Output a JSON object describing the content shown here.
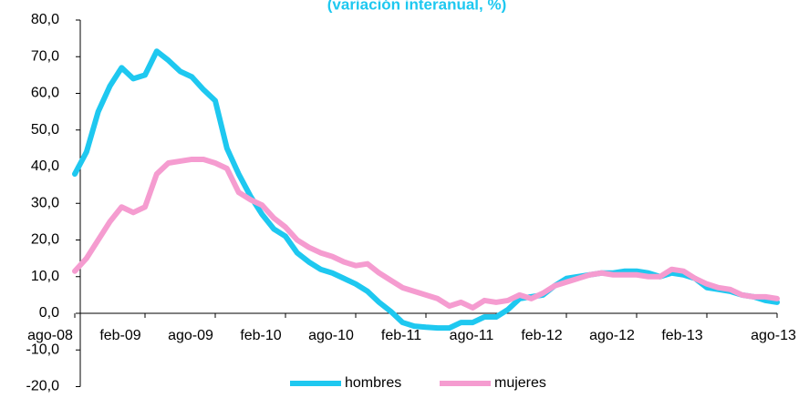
{
  "chart_data": {
    "type": "line",
    "subtitle": "(variación interanual, %)",
    "categories": [
      "ago-08",
      null,
      null,
      null,
      null,
      null,
      "feb-09",
      null,
      null,
      null,
      null,
      null,
      "ago-09",
      null,
      null,
      null,
      null,
      null,
      "feb-10",
      null,
      null,
      null,
      null,
      null,
      "ago-10",
      null,
      null,
      null,
      null,
      null,
      "feb-11",
      null,
      null,
      null,
      null,
      null,
      "ago-11",
      null,
      null,
      null,
      null,
      null,
      "feb-12",
      null,
      null,
      null,
      null,
      null,
      "ago-12",
      null,
      null,
      null,
      null,
      null,
      "feb-13",
      null,
      null,
      null,
      null,
      null,
      "ago-13"
    ],
    "series": [
      {
        "name": "hombres",
        "color": "#1ec8f0",
        "values": [
          38,
          44,
          55,
          62,
          67,
          64,
          65,
          71.5,
          69,
          66,
          64.5,
          61,
          58,
          45,
          38,
          32,
          27,
          23,
          21,
          16.5,
          14,
          12,
          11,
          9.5,
          8,
          6,
          3,
          0.5,
          -2.5,
          -3.5,
          -3.8,
          -4,
          -4,
          -2.5,
          -2.5,
          -1,
          -1,
          1,
          4,
          4.5,
          5,
          7.5,
          9.5,
          10,
          10.5,
          11,
          11,
          11.5,
          11.5,
          11,
          10,
          11,
          10.5,
          9.5,
          7,
          6.5,
          6,
          5,
          4.5,
          3.5,
          3
        ]
      },
      {
        "name": "mujeres",
        "color": "#f59cd0",
        "values": [
          11.5,
          15,
          20,
          25,
          29,
          27.5,
          29,
          38,
          41,
          41.5,
          42,
          42,
          41,
          39.5,
          33,
          31,
          29.5,
          26,
          23.5,
          20,
          18,
          16.5,
          15.5,
          14,
          13,
          13.5,
          11,
          9,
          7,
          6,
          5,
          4,
          2,
          3,
          1.5,
          3.5,
          3,
          3.5,
          5,
          4,
          5.5,
          7.5,
          8.5,
          9.5,
          10.5,
          11,
          10.5,
          10.5,
          10.5,
          10,
          10,
          12,
          11.5,
          9.5,
          8,
          7,
          6.5,
          5,
          4.5,
          4.5,
          4
        ]
      }
    ],
    "ylim": [
      -20,
      80
    ],
    "yticks": [
      {
        "value": -20,
        "label": "-20,0"
      },
      {
        "value": -10,
        "label": "-10,0"
      },
      {
        "value": 0,
        "label": "0,0"
      },
      {
        "value": 10,
        "label": "10,0"
      },
      {
        "value": 20,
        "label": "20,0"
      },
      {
        "value": 30,
        "label": "30,0"
      },
      {
        "value": 40,
        "label": "40,0"
      },
      {
        "value": 50,
        "label": "50,0"
      },
      {
        "value": 60,
        "label": "60,0"
      },
      {
        "value": 70,
        "label": "70,0"
      },
      {
        "value": 80,
        "label": "80,0"
      }
    ],
    "legend": "bottom",
    "grid": false
  }
}
